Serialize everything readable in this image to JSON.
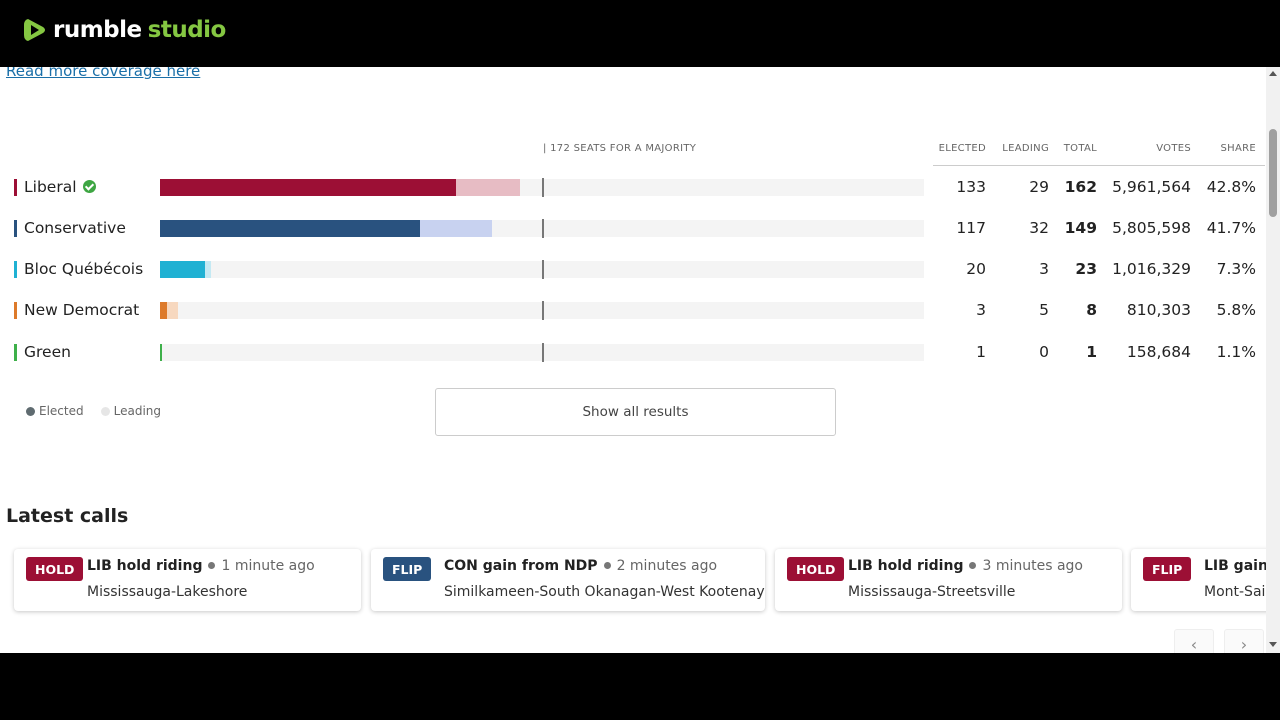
{
  "brand": {
    "word1": "rumble",
    "word2": "studio",
    "accent": "#85c742"
  },
  "coverage_link": "Read more coverage here",
  "majority_label": "| 172 SEATS FOR A MAJORITY",
  "columns": {
    "elected": "ELECTED",
    "leading": "LEADING",
    "total": "TOTAL",
    "votes": "VOTES",
    "share": "SHARE"
  },
  "majority_seats": 172,
  "scale_max_seats": 343,
  "parties": [
    {
      "name": "Liberal",
      "called": true,
      "elected": "133",
      "leading": "29",
      "total": "162",
      "votes": "5,961,564",
      "share": "42.8%",
      "elected_n": 133,
      "leading_n": 29,
      "color": "#9c0f35",
      "lead_color": "#e7bcc4"
    },
    {
      "name": "Conservative",
      "called": false,
      "elected": "117",
      "leading": "32",
      "total": "149",
      "votes": "5,805,598",
      "share": "41.7%",
      "elected_n": 117,
      "leading_n": 32,
      "color": "#29527f",
      "lead_color": "#c8d2f0"
    },
    {
      "name": "Bloc Québécois",
      "called": false,
      "elected": "20",
      "leading": "3",
      "total": "23",
      "votes": "1,016,329",
      "share": "7.3%",
      "elected_n": 20,
      "leading_n": 3,
      "color": "#1fb1d3",
      "lead_color": "#c4e9f3"
    },
    {
      "name": "New Democrat",
      "called": false,
      "elected": "3",
      "leading": "5",
      "total": "8",
      "votes": "810,303",
      "share": "5.8%",
      "elected_n": 3,
      "leading_n": 5,
      "color": "#dd7a2a",
      "lead_color": "#f7d8bf"
    },
    {
      "name": "Green",
      "called": false,
      "elected": "1",
      "leading": "0",
      "total": "1",
      "votes": "158,684",
      "share": "1.1%",
      "elected_n": 1,
      "leading_n": 0,
      "color": "#3eb04a",
      "lead_color": "#c9ecc9"
    }
  ],
  "legend": {
    "elected": "Elected",
    "leading": "Leading",
    "elected_color": "#5f6b70",
    "leading_color": "#e6e6e6"
  },
  "show_all_label": "Show all results",
  "latest_calls_title": "Latest calls",
  "calls": [
    {
      "badge": "HOLD",
      "badge_color": "#9c0f35",
      "headline": "LIB hold riding",
      "time": "1 minute ago",
      "riding": "Mississauga-Lakeshore"
    },
    {
      "badge": "FLIP",
      "badge_color": "#29527f",
      "headline": "CON gain from NDP",
      "time": "2 minutes ago",
      "riding": "Similkameen-South Okanagan-West Kootenay"
    },
    {
      "badge": "HOLD",
      "badge_color": "#9c0f35",
      "headline": "LIB hold riding",
      "time": "3 minutes ago",
      "riding": "Mississauga-Streetsville"
    },
    {
      "badge": "FLIP",
      "badge_color": "#9c0f35",
      "headline": "LIB gain",
      "time": "",
      "riding": "Mont-Sai"
    }
  ],
  "nav": {
    "prev": "‹",
    "next": "›"
  }
}
